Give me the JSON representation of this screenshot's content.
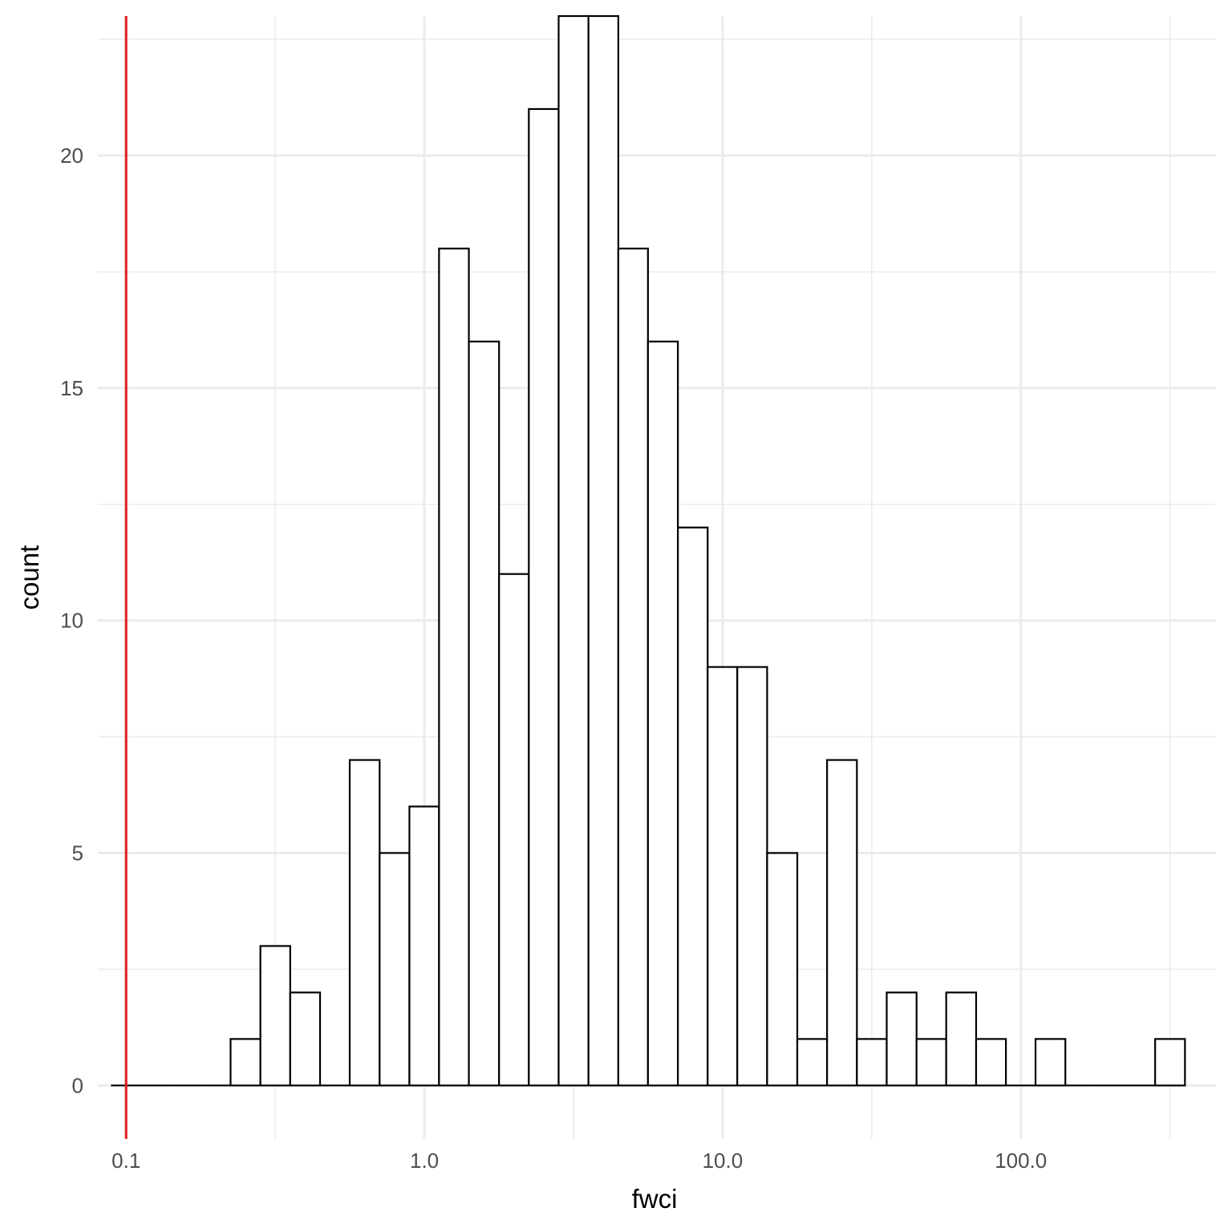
{
  "chart_data": {
    "type": "bar",
    "xlabel": "fwci",
    "ylabel": "count",
    "x_scale": "log10",
    "xlim": [
      0.0804,
      451
    ],
    "ylim": [
      -1.15,
      23.0
    ],
    "x_ticks": [
      0.1,
      1.0,
      10.0,
      100.0
    ],
    "x_tick_labels": [
      "0.1",
      "1.0",
      "10.0",
      "100.0"
    ],
    "y_ticks": [
      0,
      5,
      10,
      15,
      20
    ],
    "y_tick_labels": [
      "0",
      "5",
      "10",
      "15",
      "20"
    ],
    "grid": true,
    "bar_fill": "#ffffff",
    "bar_outline": "#000000",
    "bins": [
      {
        "x0": 0.089,
        "x1": 0.112,
        "count": 0
      },
      {
        "x0": 0.112,
        "x1": 0.141,
        "count": 0
      },
      {
        "x0": 0.141,
        "x1": 0.178,
        "count": 0
      },
      {
        "x0": 0.178,
        "x1": 0.224,
        "count": 0
      },
      {
        "x0": 0.224,
        "x1": 0.282,
        "count": 1
      },
      {
        "x0": 0.282,
        "x1": 0.355,
        "count": 3
      },
      {
        "x0": 0.355,
        "x1": 0.447,
        "count": 2
      },
      {
        "x0": 0.447,
        "x1": 0.562,
        "count": 0
      },
      {
        "x0": 0.562,
        "x1": 0.708,
        "count": 7
      },
      {
        "x0": 0.708,
        "x1": 0.891,
        "count": 5
      },
      {
        "x0": 0.891,
        "x1": 1.12,
        "count": 6
      },
      {
        "x0": 1.12,
        "x1": 1.41,
        "count": 18
      },
      {
        "x0": 1.41,
        "x1": 1.78,
        "count": 16
      },
      {
        "x0": 1.78,
        "x1": 2.24,
        "count": 11
      },
      {
        "x0": 2.24,
        "x1": 2.82,
        "count": 21
      },
      {
        "x0": 2.82,
        "x1": 3.55,
        "count": 23
      },
      {
        "x0": 3.55,
        "x1": 4.47,
        "count": 23
      },
      {
        "x0": 4.47,
        "x1": 5.62,
        "count": 18
      },
      {
        "x0": 5.62,
        "x1": 7.08,
        "count": 16
      },
      {
        "x0": 7.08,
        "x1": 8.91,
        "count": 12
      },
      {
        "x0": 8.91,
        "x1": 11.2,
        "count": 9
      },
      {
        "x0": 11.2,
        "x1": 14.1,
        "count": 9
      },
      {
        "x0": 14.1,
        "x1": 17.8,
        "count": 5
      },
      {
        "x0": 17.8,
        "x1": 22.4,
        "count": 1
      },
      {
        "x0": 22.4,
        "x1": 28.2,
        "count": 7
      },
      {
        "x0": 28.2,
        "x1": 35.5,
        "count": 1
      },
      {
        "x0": 35.5,
        "x1": 44.7,
        "count": 2
      },
      {
        "x0": 44.7,
        "x1": 56.2,
        "count": 1
      },
      {
        "x0": 56.2,
        "x1": 70.8,
        "count": 2
      },
      {
        "x0": 70.8,
        "x1": 89.1,
        "count": 1
      },
      {
        "x0": 89.1,
        "x1": 112,
        "count": 0
      },
      {
        "x0": 112,
        "x1": 141,
        "count": 1
      },
      {
        "x0": 141,
        "x1": 178,
        "count": 0
      },
      {
        "x0": 178,
        "x1": 224,
        "count": 0
      },
      {
        "x0": 224,
        "x1": 282,
        "count": 0
      },
      {
        "x0": 282,
        "x1": 355,
        "count": 1
      }
    ],
    "reference_line": {
      "x": 0.1,
      "color": "#e41a1c"
    }
  }
}
